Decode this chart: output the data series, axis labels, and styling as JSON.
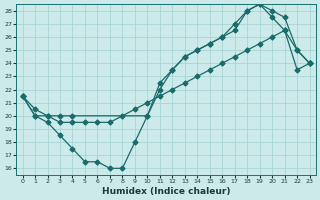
{
  "xlabel": "Humidex (Indice chaleur)",
  "xlim": [
    -0.5,
    23.5
  ],
  "ylim": [
    15.5,
    28.5
  ],
  "xticks": [
    0,
    1,
    2,
    3,
    4,
    5,
    6,
    7,
    8,
    9,
    10,
    11,
    12,
    13,
    14,
    15,
    16,
    17,
    18,
    19,
    20,
    21,
    22,
    23
  ],
  "yticks": [
    16,
    17,
    18,
    19,
    20,
    21,
    22,
    23,
    24,
    25,
    26,
    27,
    28
  ],
  "bg_color": "#cdeaea",
  "grid_color": "#a8d4d4",
  "line_color": "#1a6b6b",
  "line1_x": [
    0,
    1,
    2,
    3,
    4,
    10,
    11,
    12,
    13,
    14,
    15,
    16,
    17,
    18,
    19,
    20,
    21,
    22,
    23
  ],
  "line1_y": [
    21.5,
    20.0,
    20.0,
    20.0,
    20.0,
    20.0,
    22.0,
    23.5,
    24.5,
    25.0,
    25.5,
    26.0,
    27.0,
    28.0,
    28.5,
    28.0,
    27.5,
    25.0,
    24.0
  ],
  "line2_x": [
    0,
    1,
    2,
    3,
    4,
    5,
    6,
    7,
    8,
    9,
    10,
    11,
    12,
    13,
    14,
    15,
    16,
    17,
    18,
    19,
    20,
    21,
    22,
    23
  ],
  "line2_y": [
    21.5,
    20.0,
    19.5,
    18.5,
    17.5,
    16.5,
    16.5,
    16.0,
    16.0,
    18.0,
    20.0,
    22.5,
    23.5,
    24.5,
    25.0,
    25.5,
    26.0,
    26.5,
    28.0,
    28.5,
    27.5,
    26.5,
    25.0,
    24.0
  ],
  "line3_x": [
    0,
    1,
    2,
    3,
    4,
    5,
    6,
    7,
    8,
    9,
    10,
    11,
    12,
    13,
    14,
    15,
    16,
    17,
    18,
    19,
    20,
    21,
    22,
    23
  ],
  "line3_y": [
    21.5,
    20.5,
    20.0,
    19.5,
    19.5,
    19.5,
    19.5,
    19.5,
    20.0,
    20.5,
    21.0,
    21.5,
    22.0,
    22.5,
    23.0,
    23.5,
    24.0,
    24.5,
    25.0,
    25.5,
    26.0,
    26.5,
    23.5,
    24.0
  ],
  "marker": "D",
  "marker_size": 2.5
}
